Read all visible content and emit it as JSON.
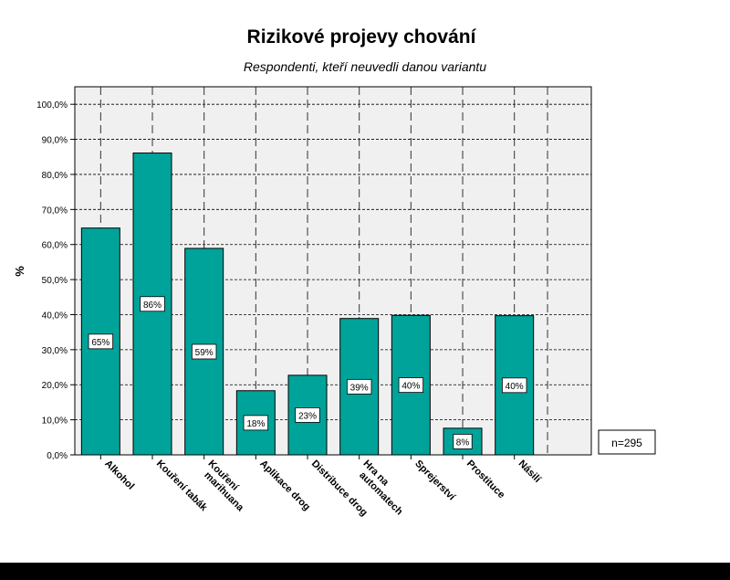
{
  "chart_data": {
    "type": "bar",
    "title": "Rizikové projevy chování",
    "subtitle": "Respondenti, kteří neuvedli danou variantu",
    "ylabel": "%",
    "xlabel": "",
    "categories": [
      "Alkohol",
      "Kouření tabák",
      "Kouření marihuana",
      "Aplikace drog",
      "Distribuce drog",
      "Hra na automatech",
      "Sprejerství",
      "Prostituce",
      "Násilí"
    ],
    "tick_label_lines": [
      [
        "Alkohol"
      ],
      [
        "Kouření tabák"
      ],
      [
        "Kouření",
        "marihuana"
      ],
      [
        "Aplikace drog"
      ],
      [
        "Distribuce drog"
      ],
      [
        "Hra na",
        "automatech"
      ],
      [
        "Sprejerství"
      ],
      [
        "Prostituce"
      ],
      [
        "Násilí"
      ]
    ],
    "values": [
      64.7,
      86.1,
      58.9,
      18.3,
      22.7,
      38.9,
      39.8,
      7.6,
      39.7
    ],
    "data_labels": [
      "65%",
      "86%",
      "59%",
      "18%",
      "23%",
      "39%",
      "40%",
      "8%",
      "40%"
    ],
    "ylim": [
      0,
      105
    ],
    "yticks": [
      0,
      10,
      20,
      30,
      40,
      50,
      60,
      70,
      80,
      90,
      100
    ],
    "ytick_labels": [
      "0,0%",
      "10,0%",
      "20,0%",
      "30,0%",
      "40,0%",
      "50,0%",
      "60,0%",
      "70,0%",
      "80,0%",
      "90,0%",
      "100,0%"
    ],
    "grid": true,
    "annotation": "n=295",
    "colors": {
      "bar_fill": "#00a39a",
      "bar_stroke": "#000000",
      "plot_background": "#f0f0f0",
      "grid": "#000000"
    }
  }
}
